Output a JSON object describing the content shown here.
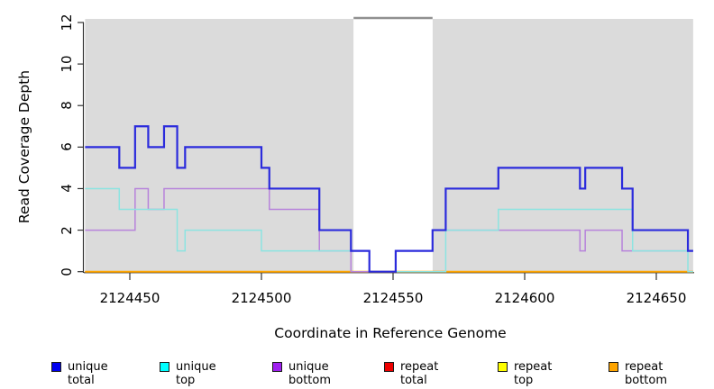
{
  "chart_data": {
    "type": "line",
    "subtype": "step",
    "title": "",
    "xlabel": "Coordinate in Reference Genome",
    "ylabel": "Read Coverage Depth",
    "xlim": [
      2124433,
      2124664
    ],
    "ylim": [
      0,
      12
    ],
    "x_ticks": [
      2124450,
      2124500,
      2124550,
      2124600,
      2124650
    ],
    "y_ticks": [
      0,
      2,
      4,
      6,
      8,
      10,
      12
    ],
    "grid": "off",
    "legend_position": "bottom",
    "background_shading": {
      "color": "#DBDBDB",
      "shaded_regions_x": [
        [
          2124433,
          2124535
        ],
        [
          2124565,
          2124664
        ]
      ],
      "gap_region_x": [
        2124535,
        2124565
      ],
      "gap_fill": "#FFFFFF",
      "gap_top_border_color": "#909090"
    },
    "series": [
      {
        "name": "unique total",
        "legend_color": "#0000F0",
        "line_color": "#2B2BDC",
        "line_width": 2.2,
        "steps": [
          [
            2124433,
            6
          ],
          [
            2124446,
            5
          ],
          [
            2124452,
            7
          ],
          [
            2124457,
            6
          ],
          [
            2124463,
            7
          ],
          [
            2124468,
            5
          ],
          [
            2124471,
            6
          ],
          [
            2124500,
            5
          ],
          [
            2124503,
            4
          ],
          [
            2124522,
            2
          ],
          [
            2124534,
            1
          ],
          [
            2124541,
            0
          ],
          [
            2124551,
            1
          ],
          [
            2124565,
            2
          ],
          [
            2124570,
            4
          ],
          [
            2124590,
            5
          ],
          [
            2124621,
            4
          ],
          [
            2124623,
            5
          ],
          [
            2124637,
            4
          ],
          [
            2124641,
            2
          ],
          [
            2124662,
            1
          ]
        ]
      },
      {
        "name": "unique top",
        "legend_color": "#00FFFF",
        "line_color": "#8CE4E1",
        "line_width": 1.5,
        "steps": [
          [
            2124433,
            4
          ],
          [
            2124446,
            3
          ],
          [
            2124468,
            1
          ],
          [
            2124471,
            2
          ],
          [
            2124500,
            1
          ],
          [
            2124541,
            0
          ],
          [
            2124570,
            2
          ],
          [
            2124590,
            3
          ],
          [
            2124641,
            1
          ],
          [
            2124662,
            0
          ]
        ]
      },
      {
        "name": "unique bottom",
        "legend_color": "#A020F0",
        "line_color": "#B783DB",
        "line_width": 1.5,
        "steps": [
          [
            2124433,
            2
          ],
          [
            2124452,
            4
          ],
          [
            2124457,
            3
          ],
          [
            2124463,
            4
          ],
          [
            2124503,
            3
          ],
          [
            2124522,
            1
          ],
          [
            2124534,
            0
          ],
          [
            2124551,
            1
          ],
          [
            2124565,
            2
          ],
          [
            2124621,
            1
          ],
          [
            2124623,
            2
          ],
          [
            2124637,
            1
          ]
        ]
      },
      {
        "name": "repeat total",
        "legend_color": "#EE0000",
        "line_color": "#DD0000",
        "line_width": 1.5,
        "steps": [
          [
            2124433,
            0
          ]
        ]
      },
      {
        "name": "repeat top",
        "legend_color": "#FFFF00",
        "line_color": "#F2E500",
        "line_width": 1.5,
        "steps": [
          [
            2124433,
            0
          ]
        ]
      },
      {
        "name": "repeat bottom",
        "legend_color": "#FFA500",
        "line_color": "#FFA500",
        "line_width": 2,
        "steps": [
          [
            2124433,
            0
          ]
        ]
      }
    ],
    "draw_order": [
      "repeat total",
      "repeat top",
      "repeat bottom",
      "unique bottom",
      "unique top",
      "unique total"
    ]
  },
  "axes": {
    "y_title": "Read Coverage Depth",
    "x_title": "Coordinate in Reference Genome"
  },
  "legend": {
    "items": [
      {
        "label": "unique total"
      },
      {
        "label": "unique top"
      },
      {
        "label": "unique bottom"
      },
      {
        "label": "repeat total"
      },
      {
        "label": "repeat top"
      },
      {
        "label": "repeat bottom"
      }
    ]
  }
}
